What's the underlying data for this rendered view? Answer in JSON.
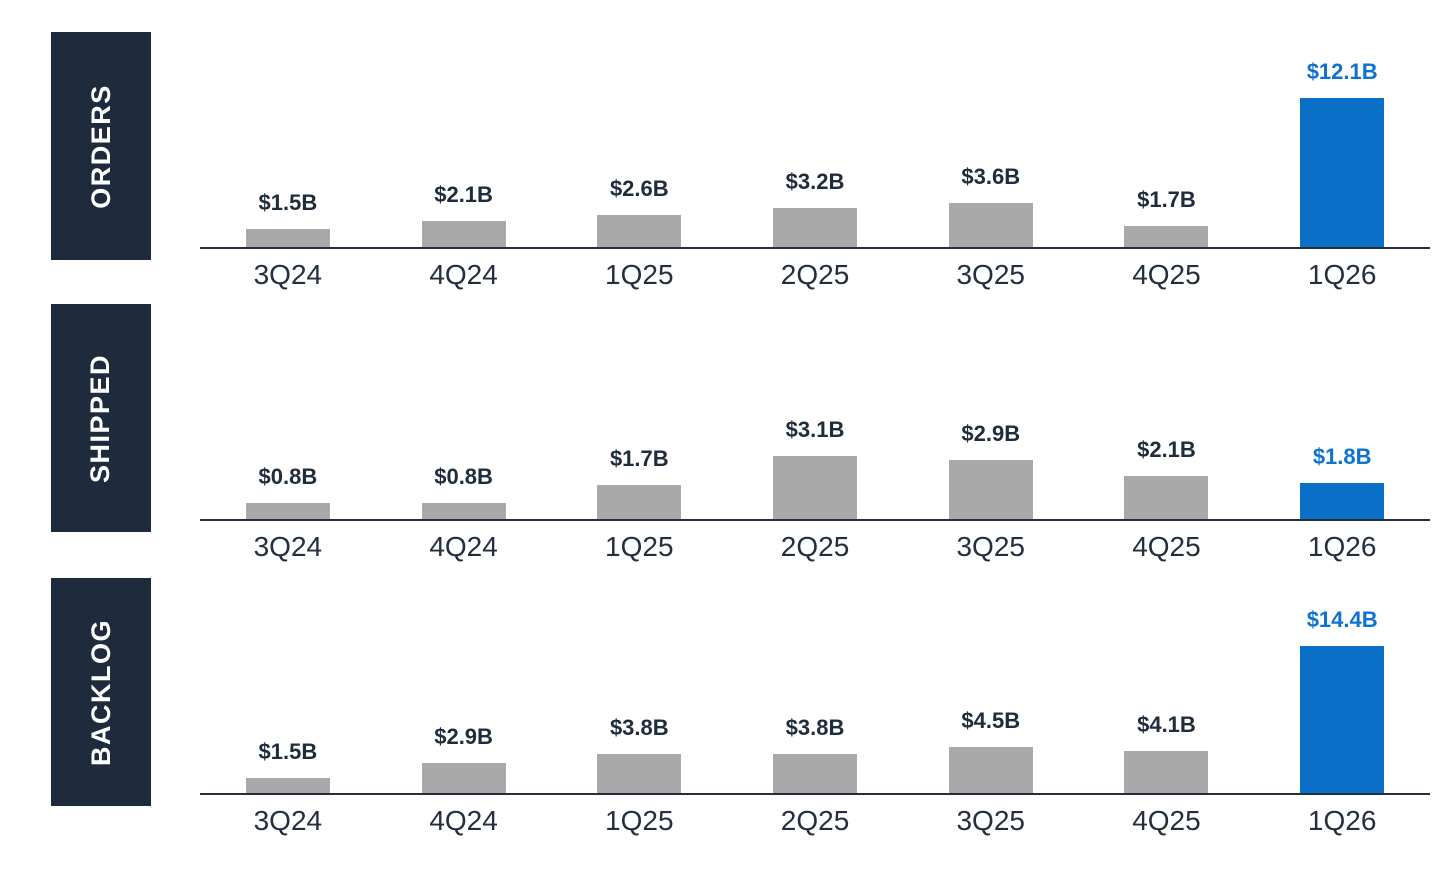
{
  "colors": {
    "navy_box": "#1d2b3c",
    "bar_gray": "#a9a9a9",
    "bar_blue": "#0a70c7",
    "value_text": "#1f2c3c",
    "value_text_highlight": "#0e72cf",
    "axis_line": "#242f3e",
    "category_text": "#232f3f",
    "section_title_text": "#ffffff",
    "background": "#ffffff"
  },
  "chart_data": [
    {
      "type": "bar",
      "title": "ORDERS",
      "unit": "USD billions",
      "categories": [
        "3Q24",
        "4Q24",
        "1Q25",
        "2Q25",
        "3Q25",
        "4Q25",
        "1Q26"
      ],
      "values": [
        1.5,
        2.1,
        2.6,
        3.2,
        3.6,
        1.7,
        12.1
      ],
      "value_labels": [
        "$1.5B",
        "$2.1B",
        "$2.6B",
        "$3.2B",
        "$3.6B",
        "$1.7B",
        "$12.1B"
      ],
      "highlight_index": 6,
      "highlight_category": "1Q26",
      "ylim": [
        0,
        17.5
      ],
      "grid": false,
      "legend": false
    },
    {
      "type": "bar",
      "title": "SHIPPED",
      "unit": "USD billions",
      "categories": [
        "3Q24",
        "4Q24",
        "1Q25",
        "2Q25",
        "3Q25",
        "4Q25",
        "1Q26"
      ],
      "values": [
        0.8,
        0.8,
        1.7,
        3.1,
        2.9,
        2.1,
        1.8
      ],
      "value_labels": [
        "$0.8B",
        "$0.8B",
        "$1.7B",
        "$3.1B",
        "$2.9B",
        "$2.1B",
        "$1.8B"
      ],
      "highlight_index": 6,
      "highlight_category": "1Q26",
      "ylim": [
        0,
        10.6
      ],
      "grid": false,
      "legend": false
    },
    {
      "type": "bar",
      "title": "BACKLOG",
      "unit": "USD billions",
      "categories": [
        "3Q24",
        "4Q24",
        "1Q25",
        "2Q25",
        "3Q25",
        "4Q25",
        "1Q26"
      ],
      "values": [
        1.5,
        2.9,
        3.8,
        3.8,
        4.5,
        4.1,
        14.4
      ],
      "value_labels": [
        "$1.5B",
        "$2.9B",
        "$3.8B",
        "$3.8B",
        "$4.5B",
        "$4.1B",
        "$14.4B"
      ],
      "highlight_index": 6,
      "highlight_category": "1Q26",
      "ylim": [
        0,
        21
      ],
      "grid": false,
      "legend": false
    }
  ]
}
